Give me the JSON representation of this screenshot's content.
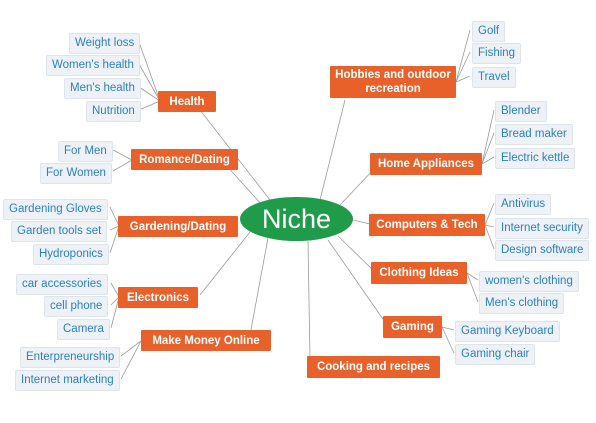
{
  "center": "Niche",
  "categories": {
    "health": "Health",
    "romance": "Romance/Dating",
    "gardening": "Gardening/Dating",
    "electronics": "Electronics",
    "money": "Make Money Online",
    "cooking": "Cooking and recipes",
    "hobbies": "Hobbies and outdoor recreation",
    "home": "Home Appliances",
    "computers": "Computers & Tech",
    "clothing": "Clothing Ideas",
    "gaming": "Gaming"
  },
  "leaves": {
    "health": [
      "Weight loss",
      "Women's health",
      "Men's health",
      "Nutrition"
    ],
    "romance": [
      "For Men",
      "For Women"
    ],
    "gardening": [
      "Gardening Gloves",
      "Garden tools set",
      "Hydroponics"
    ],
    "electronics": [
      "car accessories",
      "cell phone",
      "Camera"
    ],
    "money": [
      "Enterpreneurship",
      "Internet marketing"
    ],
    "hobbies": [
      "Golf",
      "Fishing",
      "Travel"
    ],
    "home": [
      "Blender",
      "Bread maker",
      "Electric kettle"
    ],
    "computers": [
      "Antivirus",
      "Internet security",
      "Design software"
    ],
    "clothing": [
      "women's clothing",
      "Men's clothing"
    ],
    "gaming": [
      "Gaming Keyboard",
      "Gaming chair"
    ]
  },
  "colors": {
    "center": "#1f9b4a",
    "category": "#e8612a",
    "leaf_text": "#2a7fc0",
    "leaf_bg": "#eef2f7",
    "line": "#9a9a9a"
  }
}
